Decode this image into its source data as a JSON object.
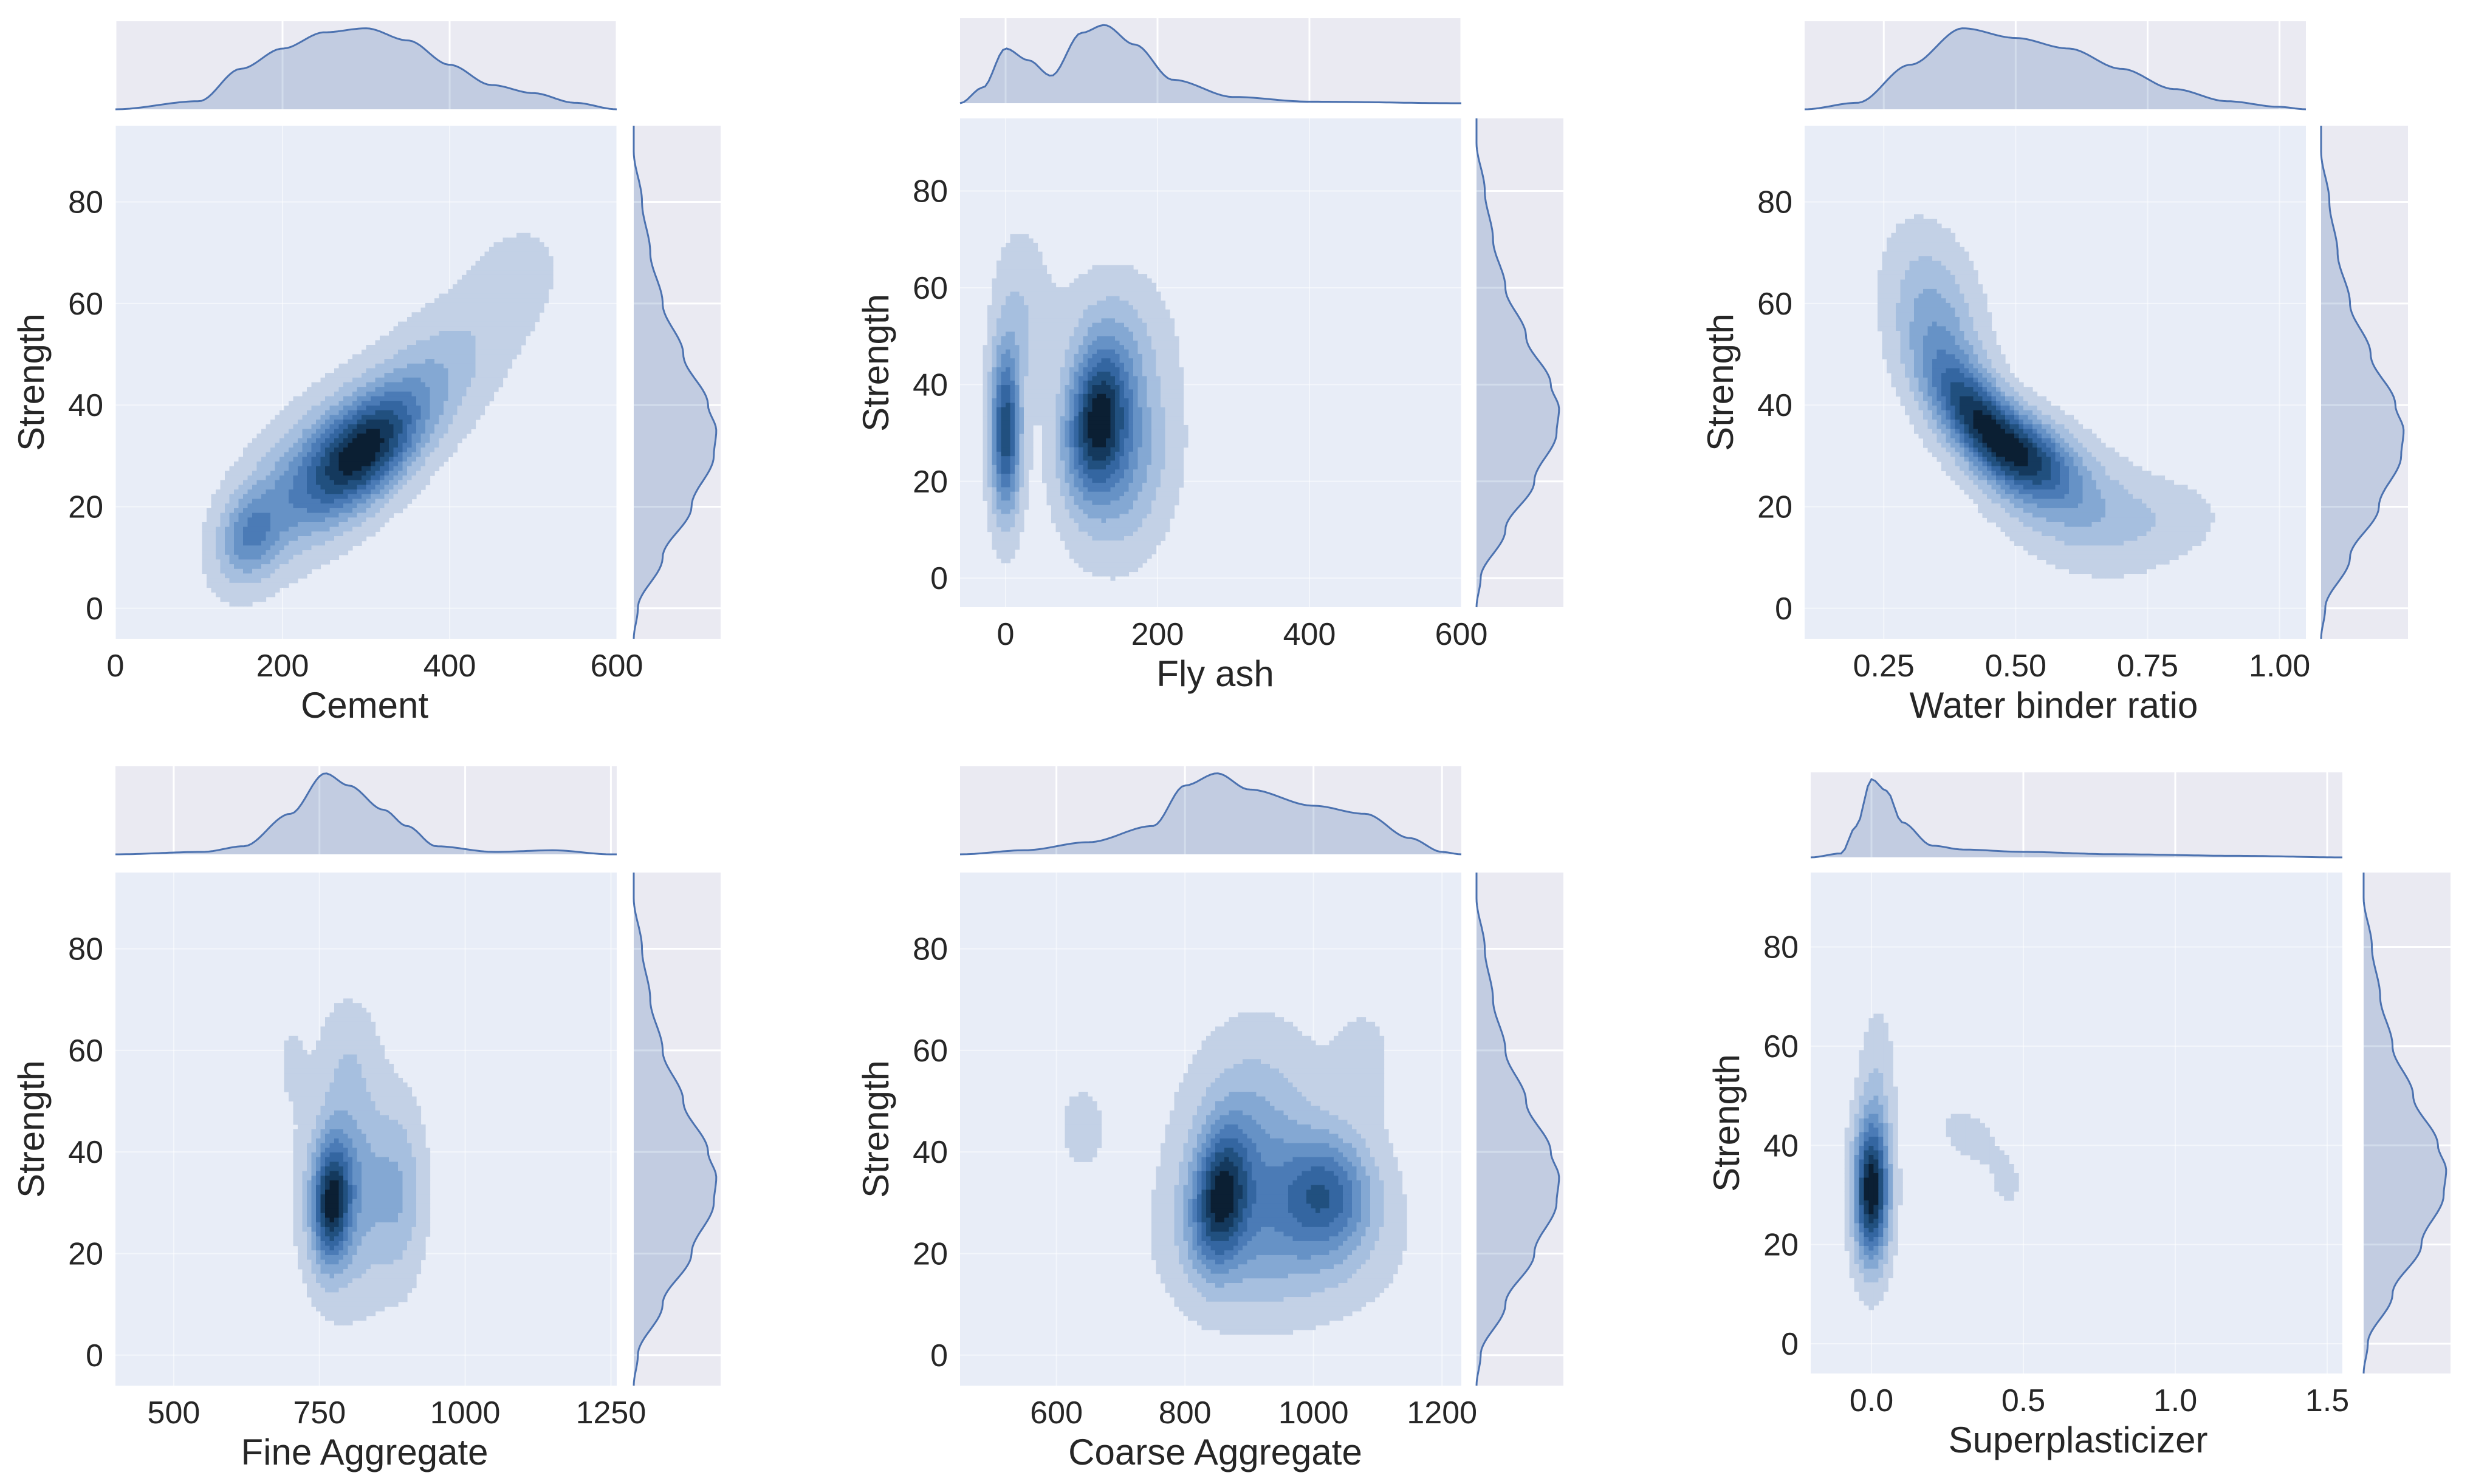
{
  "theme": {
    "panel_bg": "#eaeaf2",
    "main_bg": "#e8edf7",
    "grid": "#ffffff",
    "line": "#4c72b0",
    "fill": "#4c72b0",
    "contour_light": "#c6d3e8",
    "contour_dark": "#0b1a2a"
  },
  "chart_data": [
    {
      "type": "kde-jointplot",
      "xlabel": "Cement",
      "ylabel": "Strength",
      "xlim": [
        0,
        600
      ],
      "ylim": [
        -6,
        95
      ],
      "xticks": [
        0,
        200,
        400,
        600
      ],
      "xtick_labels": [
        "0",
        "200",
        "400",
        "600"
      ],
      "yticks": [
        0,
        20,
        40,
        60,
        80
      ],
      "ytick_labels": [
        "0",
        "20",
        "40",
        "60",
        "80"
      ],
      "grid": true,
      "density_components": [
        {
          "mx": 300,
          "my": 31,
          "sx": 45,
          "sy": 8,
          "r": 0.5,
          "w": 1.0
        },
        {
          "mx": 160,
          "my": 14,
          "sx": 25,
          "sy": 6,
          "r": 0.2,
          "w": 0.45
        },
        {
          "mx": 230,
          "my": 25,
          "sx": 60,
          "sy": 11,
          "r": 0.55,
          "w": 0.5
        },
        {
          "mx": 380,
          "my": 45,
          "sx": 55,
          "sy": 10,
          "r": 0.45,
          "w": 0.3
        },
        {
          "mx": 480,
          "my": 65,
          "sx": 45,
          "sy": 9,
          "r": 0.2,
          "w": 0.12
        }
      ],
      "x_marginal": {
        "x": [
          0,
          100,
          150,
          200,
          250,
          300,
          350,
          400,
          450,
          500,
          550,
          600
        ],
        "density": [
          0.0,
          0.1,
          0.5,
          0.75,
          0.95,
          1.0,
          0.85,
          0.55,
          0.3,
          0.2,
          0.08,
          0.0
        ]
      },
      "y_marginal": {
        "y": [
          -6,
          0,
          10,
          20,
          30,
          35,
          40,
          50,
          60,
          70,
          80,
          90
        ],
        "density": [
          0.0,
          0.05,
          0.35,
          0.7,
          0.97,
          1.0,
          0.9,
          0.6,
          0.35,
          0.2,
          0.1,
          0.0
        ]
      }
    },
    {
      "type": "kde-jointplot",
      "xlabel": "Fly ash",
      "ylabel": "Strength",
      "xlim": [
        -60,
        600
      ],
      "ylim": [
        -6,
        95
      ],
      "xticks": [
        0,
        200,
        400,
        600
      ],
      "xtick_labels": [
        "0",
        "200",
        "400",
        "600"
      ],
      "yticks": [
        0,
        20,
        40,
        60,
        80
      ],
      "ytick_labels": [
        "0",
        "20",
        "40",
        "60",
        "80"
      ],
      "grid": true,
      "density_components": [
        {
          "mx": 0,
          "my": 30,
          "sx": 14,
          "sy": 12,
          "r": 0.0,
          "w": 1.0
        },
        {
          "mx": 120,
          "my": 33,
          "sx": 28,
          "sy": 10,
          "r": 0.2,
          "w": 0.95
        },
        {
          "mx": 150,
          "my": 25,
          "sx": 45,
          "sy": 13,
          "r": 0.1,
          "w": 0.5
        },
        {
          "mx": 140,
          "my": 50,
          "sx": 50,
          "sy": 10,
          "r": 0.0,
          "w": 0.22
        },
        {
          "mx": 20,
          "my": 55,
          "sx": 25,
          "sy": 12,
          "r": 0.0,
          "w": 0.2
        }
      ],
      "x_marginal": {
        "x": [
          -60,
          -30,
          0,
          30,
          60,
          100,
          130,
          170,
          220,
          300,
          400,
          600
        ],
        "density": [
          0.0,
          0.2,
          0.7,
          0.55,
          0.35,
          0.9,
          1.0,
          0.75,
          0.3,
          0.08,
          0.02,
          0.0
        ]
      },
      "y_marginal": {
        "y": [
          -6,
          0,
          10,
          20,
          30,
          35,
          40,
          50,
          60,
          70,
          80,
          90
        ],
        "density": [
          0.0,
          0.05,
          0.35,
          0.7,
          0.97,
          1.0,
          0.9,
          0.6,
          0.35,
          0.2,
          0.1,
          0.0
        ]
      }
    },
    {
      "type": "kde-jointplot",
      "xlabel": "Water binder ratio",
      "ylabel": "Strength",
      "xlim": [
        0.1,
        1.05
      ],
      "ylim": [
        -6,
        95
      ],
      "xticks": [
        0.25,
        0.5,
        0.75,
        1.0
      ],
      "xtick_labels": [
        "0.25",
        "0.50",
        "0.75",
        "1.00"
      ],
      "yticks": [
        0,
        20,
        40,
        60,
        80
      ],
      "ytick_labels": [
        "0",
        "20",
        "40",
        "60",
        "80"
      ],
      "grid": true,
      "density_components": [
        {
          "mx": 0.43,
          "my": 37,
          "sx": 0.06,
          "sy": 8,
          "r": -0.6,
          "w": 1.0
        },
        {
          "mx": 0.53,
          "my": 30,
          "sx": 0.06,
          "sy": 6,
          "r": -0.4,
          "w": 0.8
        },
        {
          "mx": 0.35,
          "my": 55,
          "sx": 0.06,
          "sy": 12,
          "r": -0.3,
          "w": 0.45
        },
        {
          "mx": 0.62,
          "my": 20,
          "sx": 0.1,
          "sy": 8,
          "r": -0.3,
          "w": 0.35
        },
        {
          "mx": 0.8,
          "my": 18,
          "sx": 0.07,
          "sy": 5,
          "r": 0.0,
          "w": 0.12
        }
      ],
      "x_marginal": {
        "x": [
          0.1,
          0.2,
          0.3,
          0.4,
          0.5,
          0.6,
          0.7,
          0.8,
          0.9,
          1.0,
          1.05
        ],
        "density": [
          0.0,
          0.08,
          0.55,
          1.0,
          0.88,
          0.75,
          0.5,
          0.25,
          0.1,
          0.03,
          0.0
        ]
      },
      "y_marginal": {
        "y": [
          -6,
          0,
          10,
          20,
          30,
          35,
          40,
          50,
          60,
          70,
          80,
          90
        ],
        "density": [
          0.0,
          0.05,
          0.35,
          0.7,
          0.97,
          1.0,
          0.9,
          0.6,
          0.35,
          0.2,
          0.1,
          0.0
        ]
      }
    },
    {
      "type": "kde-jointplot",
      "xlabel": "Fine Aggregate",
      "ylabel": "Strength",
      "xlim": [
        400,
        1260
      ],
      "ylim": [
        -6,
        95
      ],
      "xticks": [
        500,
        750,
        1000,
        1250
      ],
      "xtick_labels": [
        "500",
        "750",
        "1000",
        "1250"
      ],
      "yticks": [
        0,
        20,
        40,
        60,
        80
      ],
      "ytick_labels": [
        "0",
        "20",
        "40",
        "60",
        "80"
      ],
      "grid": true,
      "density_components": [
        {
          "mx": 770,
          "my": 30,
          "sx": 22,
          "sy": 8,
          "r": 0.1,
          "w": 1.0
        },
        {
          "mx": 800,
          "my": 33,
          "sx": 50,
          "sy": 14,
          "r": 0.0,
          "w": 0.5
        },
        {
          "mx": 890,
          "my": 32,
          "sx": 30,
          "sy": 12,
          "r": 0.0,
          "w": 0.3
        },
        {
          "mx": 800,
          "my": 60,
          "sx": 35,
          "sy": 8,
          "r": 0.0,
          "w": 0.15
        },
        {
          "mx": 700,
          "my": 58,
          "sx": 20,
          "sy": 7,
          "r": 0.0,
          "w": 0.1
        }
      ],
      "x_marginal": {
        "x": [
          400,
          550,
          620,
          700,
          760,
          800,
          860,
          900,
          950,
          1050,
          1150,
          1250
        ],
        "density": [
          0.0,
          0.03,
          0.1,
          0.5,
          1.0,
          0.85,
          0.55,
          0.35,
          0.1,
          0.03,
          0.05,
          0.0
        ]
      },
      "y_marginal": {
        "y": [
          -6,
          0,
          10,
          20,
          30,
          35,
          40,
          50,
          60,
          70,
          80,
          90
        ],
        "density": [
          0.0,
          0.05,
          0.35,
          0.7,
          0.97,
          1.0,
          0.9,
          0.6,
          0.35,
          0.2,
          0.1,
          0.0
        ]
      }
    },
    {
      "type": "kde-jointplot",
      "xlabel": "Coarse Aggregate",
      "ylabel": "Strength",
      "xlim": [
        450,
        1230
      ],
      "ylim": [
        -6,
        95
      ],
      "xticks": [
        600,
        800,
        1000,
        1200
      ],
      "xtick_labels": [
        "600",
        "800",
        "1000",
        "1200"
      ],
      "yticks": [
        0,
        20,
        40,
        60,
        80
      ],
      "ytick_labels": [
        "0",
        "20",
        "40",
        "60",
        "80"
      ],
      "grid": true,
      "density_components": [
        {
          "mx": 855,
          "my": 31,
          "sx": 30,
          "sy": 9,
          "r": 0.2,
          "w": 1.0
        },
        {
          "mx": 1020,
          "my": 32,
          "sx": 50,
          "sy": 8,
          "r": 0.0,
          "w": 0.8
        },
        {
          "mx": 900,
          "my": 40,
          "sx": 70,
          "sy": 15,
          "r": 0.1,
          "w": 0.5
        },
        {
          "mx": 950,
          "my": 22,
          "sx": 110,
          "sy": 10,
          "r": 0.0,
          "w": 0.35
        },
        {
          "mx": 640,
          "my": 45,
          "sx": 40,
          "sy": 9,
          "r": 0.0,
          "w": 0.12
        },
        {
          "mx": 1080,
          "my": 58,
          "sx": 40,
          "sy": 10,
          "r": 0.0,
          "w": 0.12
        }
      ],
      "x_marginal": {
        "x": [
          450,
          550,
          650,
          750,
          800,
          850,
          900,
          1000,
          1080,
          1150,
          1200,
          1230
        ],
        "density": [
          0.0,
          0.05,
          0.15,
          0.35,
          0.85,
          1.0,
          0.8,
          0.6,
          0.5,
          0.2,
          0.03,
          0.0
        ]
      },
      "y_marginal": {
        "y": [
          -6,
          0,
          10,
          20,
          30,
          35,
          40,
          50,
          60,
          70,
          80,
          90
        ],
        "density": [
          0.0,
          0.05,
          0.35,
          0.7,
          0.97,
          1.0,
          0.9,
          0.6,
          0.35,
          0.2,
          0.1,
          0.0
        ]
      }
    },
    {
      "type": "kde-jointplot",
      "xlabel": "Superplasticizer",
      "ylabel": "Strength",
      "xlim": [
        -0.2,
        1.55
      ],
      "ylim": [
        -6,
        95
      ],
      "xticks": [
        0.0,
        0.5,
        1.0,
        1.5
      ],
      "xtick_labels": [
        "0.0",
        "0.5",
        "1.0",
        "1.5"
      ],
      "yticks": [
        0,
        20,
        40,
        60,
        80
      ],
      "ytick_labels": [
        "0",
        "20",
        "40",
        "60",
        "80"
      ],
      "grid": true,
      "density_components": [
        {
          "mx": 0.0,
          "my": 31,
          "sx": 0.04,
          "sy": 10,
          "r": 0.0,
          "w": 1.0
        },
        {
          "mx": 0.02,
          "my": 55,
          "sx": 0.04,
          "sy": 10,
          "r": 0.0,
          "w": 0.12
        },
        {
          "mx": 0.32,
          "my": 42,
          "sx": 0.1,
          "sy": 6,
          "r": -0.4,
          "w": 0.08
        },
        {
          "mx": 0.45,
          "my": 31,
          "sx": 0.05,
          "sy": 5,
          "r": 0.0,
          "w": 0.06
        }
      ],
      "x_marginal": {
        "x": [
          -0.2,
          -0.1,
          -0.05,
          0.0,
          0.05,
          0.1,
          0.2,
          0.3,
          0.5,
          0.8,
          1.2,
          1.55
        ],
        "density": [
          0.0,
          0.05,
          0.4,
          1.0,
          0.85,
          0.45,
          0.15,
          0.1,
          0.07,
          0.04,
          0.02,
          0.0
        ]
      },
      "y_marginal": {
        "y": [
          -6,
          0,
          10,
          20,
          30,
          35,
          40,
          50,
          60,
          70,
          80,
          90
        ],
        "density": [
          0.0,
          0.05,
          0.35,
          0.7,
          0.97,
          1.0,
          0.9,
          0.6,
          0.35,
          0.2,
          0.1,
          0.0
        ]
      }
    }
  ]
}
